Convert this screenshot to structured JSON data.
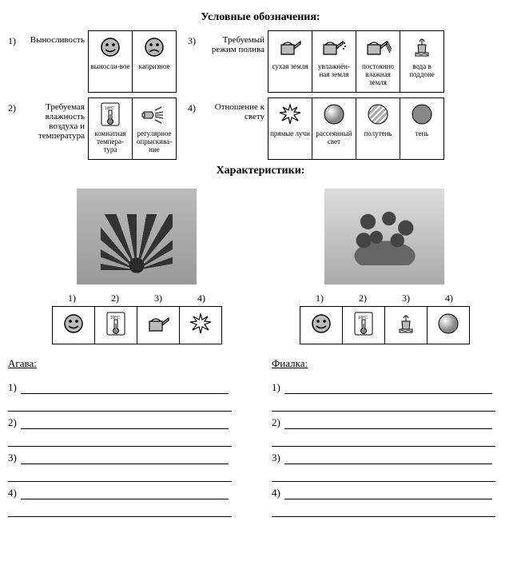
{
  "titles": {
    "legend": "Условные обозначения:",
    "characteristics": "Характеристики:"
  },
  "legend": [
    {
      "num": "1)",
      "label": "Выносливость",
      "cells": [
        {
          "icon": "smile",
          "cap": "выносли-вое"
        },
        {
          "icon": "sad",
          "cap": "капризное"
        }
      ]
    },
    {
      "num": "3)",
      "label": "Требуемый режим полива",
      "cells": [
        {
          "icon": "can-dry",
          "cap": "сухая земля"
        },
        {
          "icon": "can-drops",
          "cap": "увлажнён-ная земля"
        },
        {
          "icon": "can-stream",
          "cap": "постоянно влажная земля"
        },
        {
          "icon": "pot-water",
          "cap": "вода в поддоне"
        }
      ]
    },
    {
      "num": "2)",
      "label": "Требуемая влажность воздуха и температура",
      "cells": [
        {
          "icon": "thermo",
          "cap": "комнатная темпера-тура"
        },
        {
          "icon": "spray",
          "cap": "регулярное опрыскива-ние"
        }
      ]
    },
    {
      "num": "4)",
      "label": "Отношение к свету",
      "cells": [
        {
          "icon": "burst",
          "cap": "прямые лучи"
        },
        {
          "icon": "sphere",
          "cap": "рассеянный свет"
        },
        {
          "icon": "hatched",
          "cap": "полутень"
        },
        {
          "icon": "solid",
          "cap": "тень"
        }
      ]
    }
  ],
  "plants": [
    {
      "name": "Агава:",
      "imgClass": "agave",
      "nums": [
        "1)",
        "2)",
        "3)",
        "4)"
      ],
      "icons": [
        "smile",
        "thermo",
        "can-dry",
        "burst"
      ]
    },
    {
      "name": "Фиалка:",
      "imgClass": "violet",
      "nums": [
        "1)",
        "2)",
        "3)",
        "4)"
      ],
      "icons": [
        "smile",
        "thermo",
        "pot-water",
        "sphere"
      ]
    }
  ],
  "answerNums": [
    "1)",
    "2)",
    "3)",
    "4)"
  ],
  "iconSvg": {
    "smile": "<svg width='26' height='26' viewBox='0 0 26 26'><circle cx='13' cy='13' r='11' fill='#bbb' stroke='#000' stroke-width='1.5'/><circle cx='9' cy='10' r='1.8' fill='#000'/><circle cx='17' cy='10' r='1.8' fill='#000'/><path d='M7 16 Q13 21 19 16' stroke='#000' stroke-width='1.5' fill='none'/></svg>",
    "sad": "<svg width='26' height='26' viewBox='0 0 26 26'><circle cx='13' cy='13' r='11' fill='#bbb' stroke='#000' stroke-width='1.5'/><circle cx='9' cy='10' r='1.8' fill='#000'/><circle cx='17' cy='10' r='1.8' fill='#000'/><path d='M7 19 Q13 14 19 19' stroke='#000' stroke-width='1.5' fill='none'/></svg>",
    "can-dry": "<svg width='34' height='26' viewBox='0 0 34 26'><path d='M6 10 L6 22 L22 22 L22 10 Z M22 12 L30 6 L30 9 L22 15' fill='#bbb' stroke='#000' stroke-width='1.2'/><path d='M8 10 Q14 4 20 10' fill='none' stroke='#000' stroke-width='1.2'/></svg>",
    "can-drops": "<svg width='34' height='26' viewBox='0 0 34 26'><path d='M4 10 L4 22 L20 22 L20 10 Z M20 12 L28 6 L28 9 L20 15' fill='#bbb' stroke='#000' stroke-width='1.2'/><path d='M6 10 Q12 4 18 10' fill='none' stroke='#000' stroke-width='1.2'/><circle cx='30' cy='8' r='1' fill='#000'/><circle cx='31' cy='12' r='1' fill='#000'/><circle cx='29' cy='15' r='1' fill='#000'/></svg>",
    "can-stream": "<svg width='34' height='26' viewBox='0 0 34 26'><path d='M4 10 L4 22 L20 22 L20 10 Z M20 12 L28 6 L28 9 L20 15' fill='#bbb' stroke='#000' stroke-width='1.2'/><path d='M6 10 Q12 4 18 10' fill='none' stroke='#000' stroke-width='1.2'/><line x1='28' y1='8' x2='33' y2='18' stroke='#000'/><line x1='29' y1='6' x2='34' y2='16' stroke='#000'/><line x1='27' y1='10' x2='32' y2='20' stroke='#000'/></svg>",
    "pot-water": "<svg width='30' height='30' viewBox='0 0 30 30'><path d='M10 12 L20 12 L19 22 L11 22 Z' fill='#bbb' stroke='#000'/><rect x='7' y='22' width='16' height='4' fill='none' stroke='#000'/><path d='M15 12 L15 5 M12 8 Q15 2 18 8' fill='none' stroke='#000'/><path d='M8 24 Q10 23 12 24 Q14 25 16 24 Q18 23 20 24 Q22 25 22 24' fill='none' stroke='#000' stroke-width='0.8'/></svg>",
    "thermo": "<svg width='30' height='32' viewBox='0 0 30 32'><rect x='4' y='2' width='22' height='28' rx='2' fill='#fff' stroke='#000'/><text x='8' y='10' font-size='6' fill='#000'>18°C</text><rect x='13' y='11' width='4' height='12' fill='#fff' stroke='#000'/><circle cx='15' cy='25' r='3.5' fill='#888' stroke='#000'/><rect x='14' y='16' width='2' height='8' fill='#888'/></svg>",
    "spray": "<svg width='34' height='26' viewBox='0 0 34 26'><path d='M4 10 L14 10 L16 14 L14 18 L4 18 Z' fill='#bbb' stroke='#000'/><rect x='2' y='12' width='3' height='4' fill='#fff' stroke='#000'/><line x1='18' y1='8' x2='26' y2='4' stroke='#000'/><line x1='18' y1='12' x2='28' y2='10' stroke='#000'/><line x1='18' y1='14' x2='28' y2='14' stroke='#000'/><line x1='18' y1='16' x2='28' y2='18' stroke='#000'/><line x1='18' y1='20' x2='26' y2='24' stroke='#000'/></svg>",
    "burst": "<svg width='30' height='30' viewBox='0 0 30 30'><path d='M15 3 L17 10 L24 6 L20 12 L28 13 L20 16 L25 23 L17 19 L15 27 L13 19 L5 23 L10 16 L2 13 L10 12 L6 6 L13 10 Z' fill='#fff' stroke='#000' stroke-width='1.2'/></svg>",
    "sphere": "<svg width='28' height='28' viewBox='0 0 28 28'><defs><radialGradient id='g1' cx='35%' cy='35%'><stop offset='0%' stop-color='#fff'/><stop offset='100%' stop-color='#888'/></radialGradient></defs><circle cx='14' cy='14' r='12' fill='url(#g1)' stroke='#000'/></svg>",
    "hatched": "<svg width='28' height='28' viewBox='0 0 28 28'><defs><pattern id='p1' width='5' height='5' patternUnits='userSpaceOnUse' patternTransform='rotate(45)'><rect width='3' height='5' fill='#aaa'/><rect x='3' width='2' height='5' fill='#fff'/></pattern></defs><circle cx='14' cy='14' r='12' fill='url(#p1)' stroke='#000'/></svg>",
    "solid": "<svg width='28' height='28' viewBox='0 0 28 28'><circle cx='14' cy='14' r='12' fill='#888' stroke='#000'/></svg>"
  }
}
